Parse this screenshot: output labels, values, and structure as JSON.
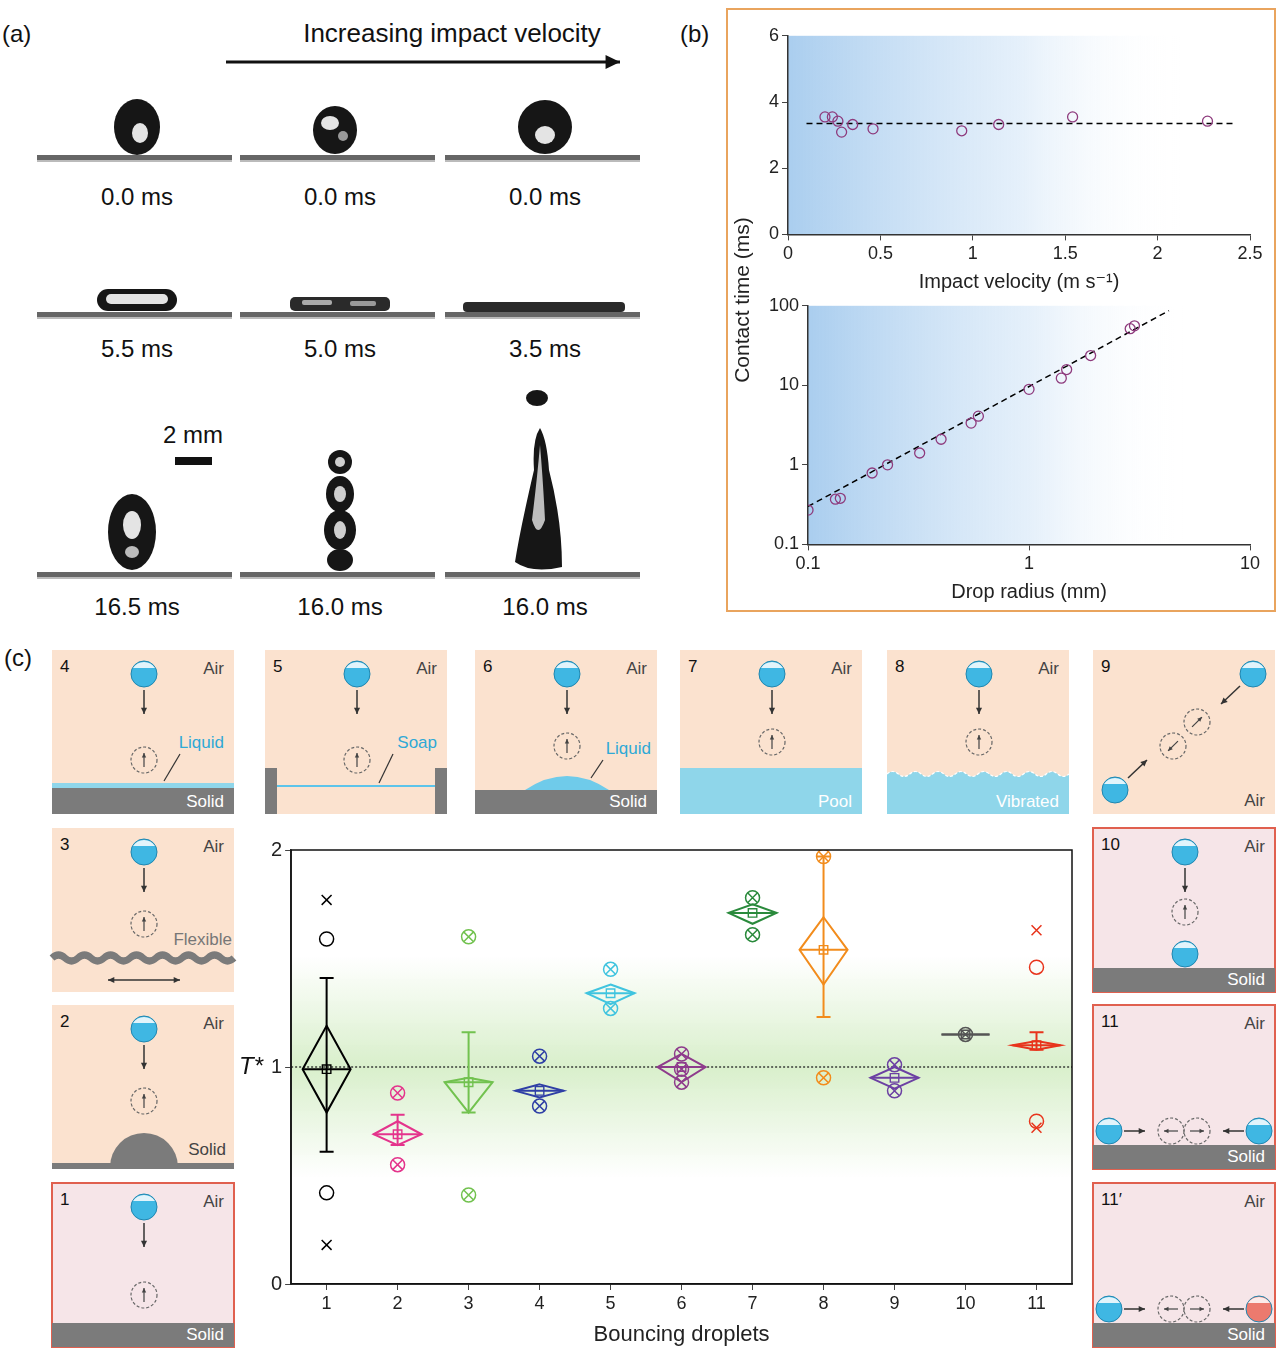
{
  "panel_labels": [
    "(a)",
    "(b)",
    "(c)"
  ],
  "panel_a": {
    "title": "Increasing impact velocity",
    "times": [
      [
        "0.0 ms",
        "0.0 ms",
        "0.0 ms"
      ],
      [
        "5.5 ms",
        "5.0 ms",
        "3.5 ms"
      ],
      [
        "16.5 ms",
        "16.0 ms",
        "16.0 ms"
      ]
    ],
    "scale_bar": "2 mm"
  },
  "chart_data": [
    {
      "type": "scatter",
      "ylabel": "Contact time (ms)",
      "xlabel": "Impact velocity (m s⁻¹)",
      "xlim": [
        0,
        2.5
      ],
      "xticks": [
        0,
        0.5,
        1,
        1.5,
        2,
        2.5
      ],
      "ylim": [
        0,
        6
      ],
      "yticks": [
        0,
        2,
        4,
        6
      ],
      "grid": false,
      "series": [
        {
          "color": "#8e3b7d",
          "marker": "circle",
          "x": [
            0.2,
            0.24,
            0.27,
            0.29,
            0.35,
            0.46,
            0.94,
            1.14,
            1.54,
            2.27
          ],
          "values": [
            3.55,
            3.55,
            3.42,
            3.09,
            3.32,
            3.19,
            3.13,
            3.32,
            3.55,
            3.42
          ]
        },
        {
          "type": "line",
          "line_style": "dashed",
          "color": "#000000",
          "x": [
            0.1,
            2.42
          ],
          "values": [
            3.35,
            3.35
          ]
        }
      ]
    },
    {
      "type": "scatter",
      "xlabel": "Drop radius (mm)",
      "log": true,
      "xlim": [
        0.1,
        10
      ],
      "xticks": [
        0.1,
        1,
        10
      ],
      "ylim": [
        0.1,
        100
      ],
      "yticks": [
        0.1,
        1,
        10,
        100
      ],
      "grid": false,
      "series": [
        {
          "color": "#8e3b7d",
          "marker": "circle",
          "x": [
            0.1,
            0.133,
            0.14,
            0.195,
            0.229,
            0.32,
            0.4,
            0.547,
            0.59,
            1.0,
            1.4,
            1.48,
            1.9,
            2.87,
            3.0
          ],
          "values": [
            0.27,
            0.37,
            0.38,
            0.79,
            1.0,
            1.41,
            2.1,
            3.35,
            4.1,
            8.9,
            12.3,
            15.8,
            23.7,
            51.5,
            56
          ]
        },
        {
          "type": "line",
          "line_style": "dashed",
          "color": "#000000",
          "x": [
            0.1,
            4.3
          ],
          "values": [
            0.3,
            87
          ]
        }
      ]
    },
    {
      "type": "box",
      "xlabel": "Bouncing droplets",
      "categories": [
        "1",
        "2",
        "3",
        "4",
        "5",
        "6",
        "7",
        "8",
        "9",
        "10",
        "11"
      ],
      "ylim": [
        0,
        2
      ],
      "yticks": [
        0,
        1,
        2
      ],
      "grid": false,
      "reference_y": 1,
      "annotations": [
        {
          "text": "T*",
          "y": 1
        }
      ],
      "series": [
        {
          "color": "#000000",
          "mean": 0.99,
          "box": [
            0.79,
            1.19
          ],
          "whiskers": [
            0.61,
            1.41
          ],
          "points": [
            {
              "value": 1.77,
              "marker": "cross"
            },
            {
              "value": 1.59,
              "marker": "circle"
            },
            {
              "value": 0.42,
              "marker": "circle"
            },
            {
              "value": 0.18,
              "marker": "cross"
            }
          ]
        },
        {
          "color": "#e4348c",
          "mean": 0.69,
          "box": [
            0.64,
            0.75
          ],
          "whiskers": [
            0.64,
            0.78
          ],
          "points": [
            {
              "value": 0.88,
              "marker": "crossed_circle"
            },
            {
              "value": 0.55,
              "marker": "crossed_circle"
            }
          ]
        },
        {
          "color": "#72c24f",
          "mean": 0.93,
          "box": [
            0.79,
            0.95
          ],
          "whiskers": [
            0.79,
            1.16
          ],
          "points": [
            {
              "value": 1.6,
              "marker": "crossed_circle"
            },
            {
              "value": 0.41,
              "marker": "crossed_circle"
            }
          ]
        },
        {
          "color": "#2f3fa6",
          "mean": 0.89,
          "box": [
            0.86,
            0.92
          ],
          "points": [
            {
              "value": 1.05,
              "marker": "crossed_circle"
            },
            {
              "value": 0.82,
              "marker": "crossed_circle"
            }
          ]
        },
        {
          "color": "#40c4df",
          "mean": 1.34,
          "box": [
            1.29,
            1.38
          ],
          "points": [
            {
              "value": 1.45,
              "marker": "crossed_circle"
            },
            {
              "value": 1.27,
              "marker": "crossed_circle"
            }
          ]
        },
        {
          "color": "#8e3b8c",
          "mean": 1.0,
          "box": [
            0.93,
            1.06
          ],
          "points": [
            {
              "value": 1.06,
              "marker": "crossed_circle"
            },
            {
              "value": 0.99,
              "marker": "crossed_circle"
            },
            {
              "value": 0.93,
              "marker": "crossed_circle"
            }
          ]
        },
        {
          "color": "#2a8a3c",
          "mean": 1.71,
          "box": [
            1.66,
            1.75
          ],
          "points": [
            {
              "value": 1.78,
              "marker": "crossed_circle"
            },
            {
              "value": 1.61,
              "marker": "crossed_circle"
            }
          ]
        },
        {
          "color": "#f28c1c",
          "mean": 1.54,
          "box": [
            1.38,
            1.69
          ],
          "whiskers": [
            1.23,
            1.97
          ],
          "points": [
            {
              "value": 1.97,
              "marker": "crossed_circle"
            },
            {
              "value": 0.95,
              "marker": "crossed_circle"
            }
          ]
        },
        {
          "color": "#6c41a3",
          "mean": 0.95,
          "box": [
            0.9,
            1.0
          ],
          "points": [
            {
              "value": 1.01,
              "marker": "crossed_circle"
            },
            {
              "value": 0.89,
              "marker": "crossed_circle"
            }
          ]
        },
        {
          "color": "#555555",
          "mean": 1.15,
          "box": [
            1.15,
            1.15
          ],
          "points": [
            {
              "value": 1.15,
              "marker": "crossed_circle"
            }
          ]
        },
        {
          "color": "#e8341c",
          "mean": 1.1,
          "box": [
            1.08,
            1.12
          ],
          "whiskers": [
            1.08,
            1.16
          ],
          "points": [
            {
              "value": 1.63,
              "marker": "cross"
            },
            {
              "value": 1.46,
              "marker": "circle"
            },
            {
              "value": 0.75,
              "marker": "circle"
            },
            {
              "value": 0.72,
              "marker": "cross"
            }
          ]
        }
      ]
    }
  ],
  "schematics": [
    {
      "id": "1",
      "texts": [
        "Air",
        "Solid"
      ]
    },
    {
      "id": "2",
      "texts": [
        "Air",
        "Solid"
      ]
    },
    {
      "id": "3",
      "texts": [
        "Air",
        "Flexible"
      ]
    },
    {
      "id": "4",
      "texts": [
        "Air",
        "Liquid",
        "Solid"
      ]
    },
    {
      "id": "5",
      "texts": [
        "Air",
        "Soap"
      ]
    },
    {
      "id": "6",
      "texts": [
        "Air",
        "Liquid",
        "Solid"
      ]
    },
    {
      "id": "7",
      "texts": [
        "Air",
        "Pool"
      ]
    },
    {
      "id": "8",
      "texts": [
        "Air",
        "Vibrated"
      ]
    },
    {
      "id": "9",
      "texts": [
        "Air"
      ]
    },
    {
      "id": "10",
      "texts": [
        "Air",
        "Solid"
      ]
    },
    {
      "id": "11",
      "texts": [
        "Air",
        "Solid"
      ]
    },
    {
      "id": "11′",
      "texts": [
        "Air",
        "Solid"
      ]
    }
  ]
}
